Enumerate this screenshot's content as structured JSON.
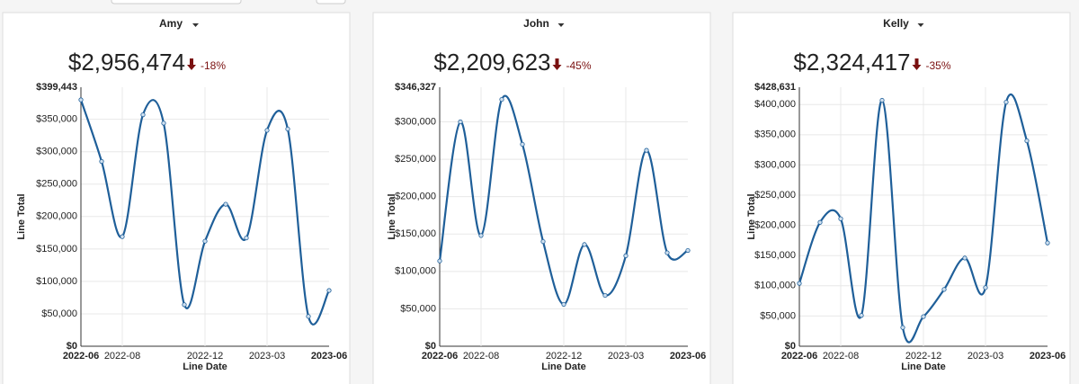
{
  "chart_data": [
    {
      "type": "line",
      "title": "Amy",
      "kpi": "$2,956,474",
      "change": "-18%",
      "x_label": "Line Date",
      "y_label": "Line Total",
      "x": [
        "2022-06",
        "2022-07",
        "2022-08",
        "2022-09",
        "2022-10",
        "2022-11",
        "2022-12",
        "2023-01",
        "2023-02",
        "2023-03",
        "2023-04",
        "2023-05",
        "2023-06"
      ],
      "xticks": [
        "2022-06",
        "2022-08",
        "2022-12",
        "2023-03",
        "2023-06"
      ],
      "series": [
        {
          "name": "Line Total",
          "color": "#1f5f99",
          "values": [
            380000,
            285000,
            169000,
            357000,
            344000,
            64000,
            162000,
            219000,
            167000,
            333000,
            335000,
            46000,
            86000
          ]
        }
      ],
      "ylim": [
        0,
        399443
      ],
      "yticks": [
        {
          "value": 0,
          "label": "$0"
        },
        {
          "value": 50000,
          "label": "$50,000"
        },
        {
          "value": 100000,
          "label": "$100,000"
        },
        {
          "value": 150000,
          "label": "$150,000"
        },
        {
          "value": 200000,
          "label": "$200,000"
        },
        {
          "value": 250000,
          "label": "$250,000"
        },
        {
          "value": 300000,
          "label": "$300,000"
        },
        {
          "value": 350000,
          "label": "$350,000"
        },
        {
          "value": 399443,
          "label": "$399,443"
        }
      ],
      "grid": true
    },
    {
      "type": "line",
      "title": "John",
      "kpi": "$2,209,623",
      "change": "-45%",
      "x_label": "Line Date",
      "y_label": "Line Total",
      "x": [
        "2022-06",
        "2022-07",
        "2022-08",
        "2022-09",
        "2022-10",
        "2022-11",
        "2022-12",
        "2023-01",
        "2023-02",
        "2023-03",
        "2023-04",
        "2023-05",
        "2023-06"
      ],
      "xticks": [
        "2022-06",
        "2022-08",
        "2022-12",
        "2023-03",
        "2023-06"
      ],
      "series": [
        {
          "name": "Line Total",
          "color": "#1f5f99",
          "values": [
            114000,
            300000,
            148000,
            330000,
            270000,
            140000,
            56000,
            136000,
            68000,
            121000,
            262000,
            125000,
            128000
          ]
        }
      ],
      "ylim": [
        0,
        346327
      ],
      "yticks": [
        {
          "value": 0,
          "label": "$0"
        },
        {
          "value": 50000,
          "label": "$50,000"
        },
        {
          "value": 100000,
          "label": "$100,000"
        },
        {
          "value": 150000,
          "label": "$150,000"
        },
        {
          "value": 200000,
          "label": "$200,000"
        },
        {
          "value": 250000,
          "label": "$250,000"
        },
        {
          "value": 300000,
          "label": "$300,000"
        },
        {
          "value": 346327,
          "label": "$346,327"
        }
      ],
      "grid": true
    },
    {
      "type": "line",
      "title": "Kelly",
      "kpi": "$2,324,417",
      "change": "-35%",
      "x_label": "Line Date",
      "y_label": "Line Total",
      "x": [
        "2022-06",
        "2022-07",
        "2022-08",
        "2022-09",
        "2022-10",
        "2022-11",
        "2022-12",
        "2023-01",
        "2023-02",
        "2023-03",
        "2023-04",
        "2023-05",
        "2023-06"
      ],
      "xticks": [
        "2022-06",
        "2022-08",
        "2022-12",
        "2023-03",
        "2023-06"
      ],
      "series": [
        {
          "name": "Line Total",
          "color": "#1f5f99",
          "values": [
            104000,
            205000,
            211000,
            51000,
            407000,
            31000,
            49000,
            94000,
            146000,
            97000,
            404000,
            340000,
            171000
          ]
        }
      ],
      "ylim": [
        0,
        428631
      ],
      "yticks": [
        {
          "value": 0,
          "label": "$0"
        },
        {
          "value": 50000,
          "label": "$50,000"
        },
        {
          "value": 100000,
          "label": "$100,000"
        },
        {
          "value": 150000,
          "label": "$150,000"
        },
        {
          "value": 200000,
          "label": "$200,000"
        },
        {
          "value": 250000,
          "label": "$250,000"
        },
        {
          "value": 300000,
          "label": "$300,000"
        },
        {
          "value": 350000,
          "label": "$350,000"
        },
        {
          "value": 400000,
          "label": "$400,000"
        },
        {
          "value": 428631,
          "label": "$428,631"
        }
      ],
      "grid": true
    }
  ]
}
